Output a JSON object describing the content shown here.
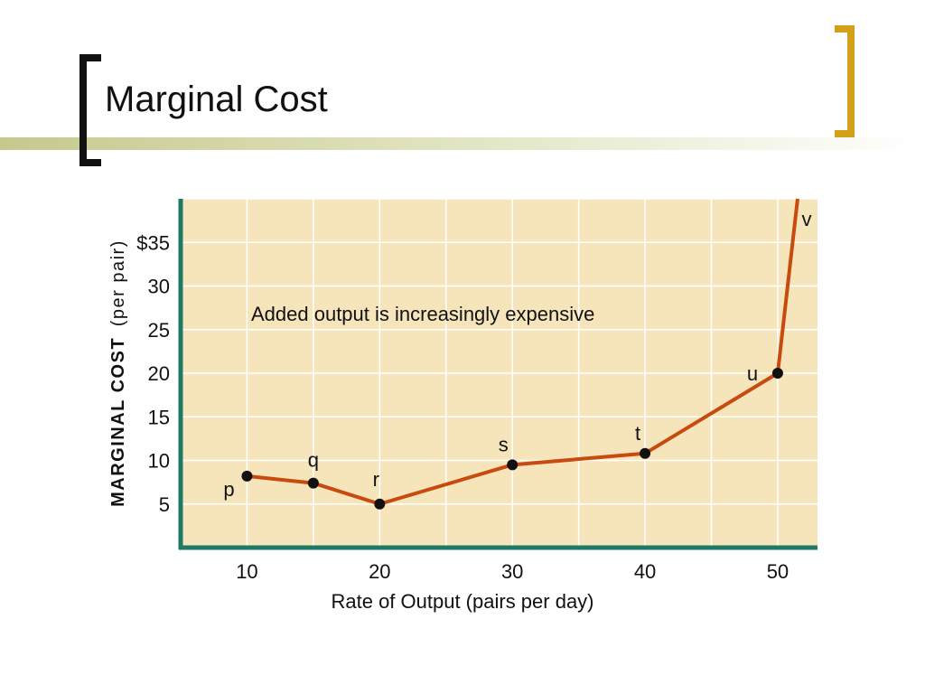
{
  "slide": {
    "title": "Marginal Cost"
  },
  "colors": {
    "plot_bg": "#f6e5bb",
    "axis": "#1e7a66",
    "line": "#c94a0e",
    "grid": "#ffffff",
    "bracket_left": "#111111",
    "bracket_right": "#d4a017"
  },
  "chart_data": {
    "type": "line",
    "title": "",
    "xlabel": "Rate of Output (pairs per day)",
    "ylabel_bold": "MARGINAL COST",
    "ylabel_normal": "(per pair)",
    "annotation": "Added output is increasingly expensive",
    "xlim": [
      5,
      53
    ],
    "ylim": [
      0,
      40
    ],
    "x_ticks": [
      10,
      20,
      30,
      40,
      50
    ],
    "y_ticks": [
      {
        "value": 5,
        "label": "5"
      },
      {
        "value": 10,
        "label": "10"
      },
      {
        "value": 15,
        "label": "15"
      },
      {
        "value": 20,
        "label": "20"
      },
      {
        "value": 25,
        "label": "25"
      },
      {
        "value": 30,
        "label": "30"
      },
      {
        "value": 35,
        "label": "$35"
      }
    ],
    "grid": true,
    "series": [
      {
        "points": [
          {
            "label": "p",
            "x": 10,
            "y": 8.2
          },
          {
            "label": "q",
            "x": 15,
            "y": 7.4
          },
          {
            "label": "r",
            "x": 20,
            "y": 5.0
          },
          {
            "label": "s",
            "x": 30,
            "y": 9.5
          },
          {
            "label": "t",
            "x": 40,
            "y": 10.8
          },
          {
            "label": "u",
            "x": 50,
            "y": 20.0
          },
          {
            "label": "v",
            "x": 51.5,
            "y": 40.0,
            "marker": false
          }
        ]
      }
    ]
  }
}
